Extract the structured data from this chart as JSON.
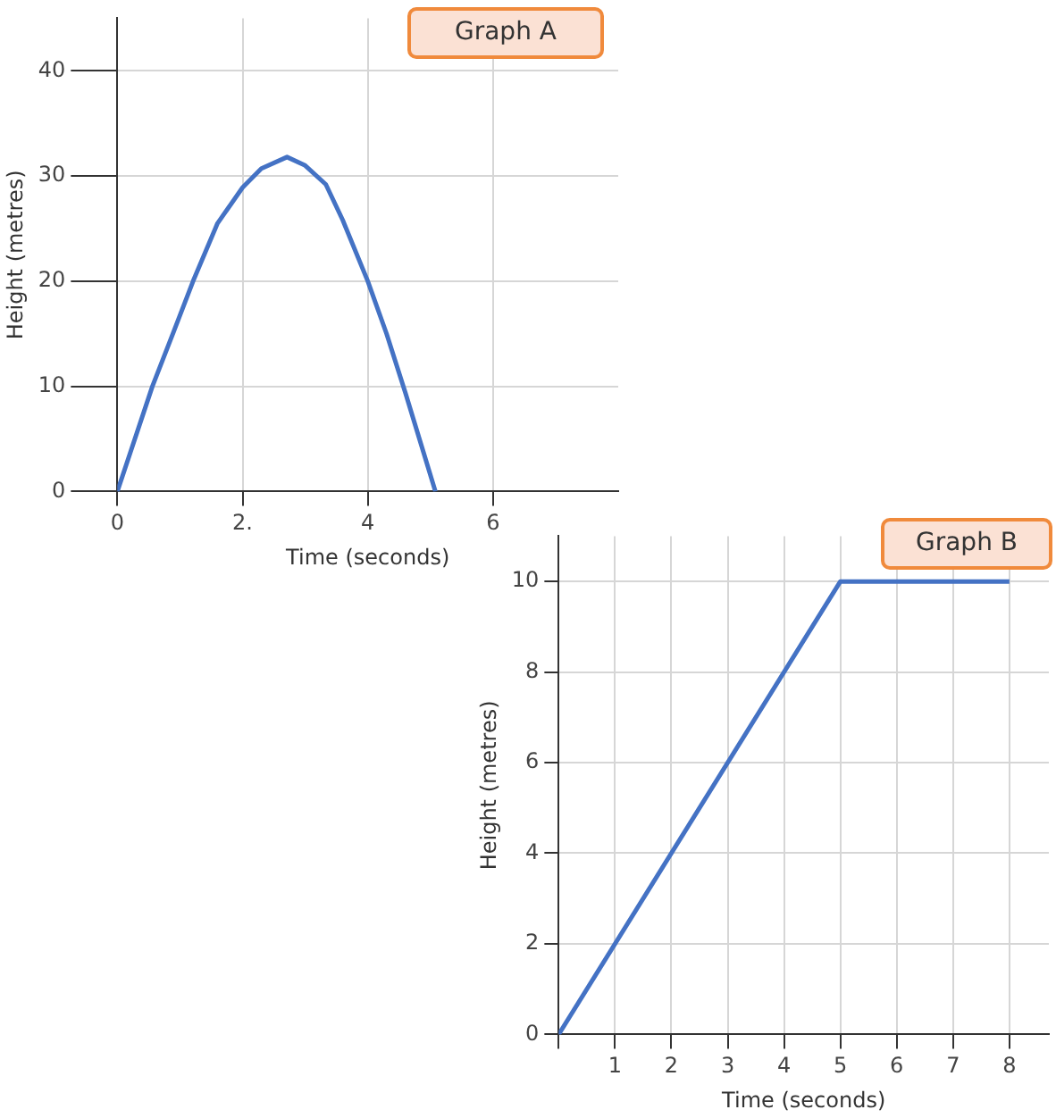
{
  "chart_data": [
    {
      "type": "line",
      "title": "Graph A",
      "xlabel": "Time (seconds)",
      "ylabel": "Height (metres)",
      "color": "#4472c4",
      "x": [
        0,
        0.56,
        0.9,
        1.21,
        1.6,
        2,
        2.3,
        2.71,
        3,
        3.33,
        3.6,
        4,
        4.3,
        4.6,
        5.08
      ],
      "values": [
        0,
        10,
        15.2,
        20,
        25.5,
        28.9,
        30.7,
        31.8,
        31,
        29.2,
        25.8,
        20,
        15,
        9.4,
        0
      ],
      "xlim": [
        0,
        8
      ],
      "xticks": [
        0,
        {
          "value": 2,
          "label": "2."
        },
        4,
        6
      ],
      "ylim": [
        0,
        45
      ],
      "yticks": [
        0,
        10,
        20,
        30,
        40
      ],
      "grid": true
    },
    {
      "type": "line",
      "title": "Graph B",
      "xlabel": "Time (seconds)",
      "ylabel": "Height (metres)",
      "color": "#4472c4",
      "x": [
        0,
        5,
        8
      ],
      "values": [
        0,
        10,
        10
      ],
      "xlim": [
        0,
        8.7
      ],
      "xticks": [
        {
          "value": 0,
          "label": null
        },
        1,
        2,
        3,
        4,
        5,
        6,
        7,
        8
      ],
      "ylim": [
        0,
        11
      ],
      "yticks": [
        0,
        2,
        4,
        6,
        8,
        10
      ],
      "grid": true
    }
  ]
}
